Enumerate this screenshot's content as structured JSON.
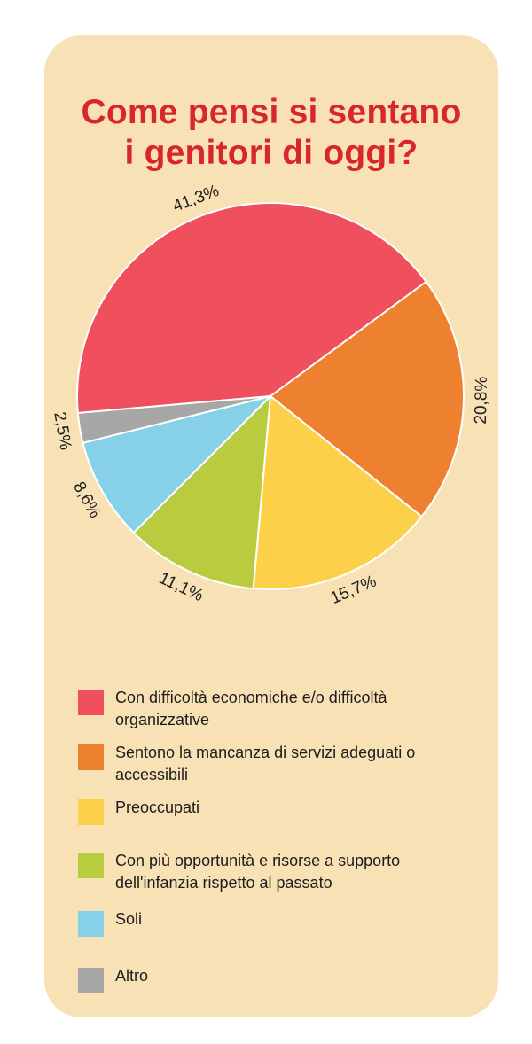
{
  "title": {
    "line1": "Come pensi si sentano",
    "line2": "i genitori di oggi?"
  },
  "colors": {
    "title": "#d8262d",
    "background": "#f9e1b6",
    "slice_1": "#f04f5d",
    "slice_2": "#ee8130",
    "slice_3": "#fdd04a",
    "slice_4": "#b9cc40",
    "slice_5": "#86d1e8",
    "slice_6": "#a7a7a7"
  },
  "chart_data": {
    "type": "pie",
    "title": "Come pensi si sentano i genitori di oggi?",
    "categories": [
      "Con difficoltà economiche e/o difficoltà organizzative",
      "Sentono la mancanza di servizi adeguati o accessibili",
      "Preoccupati",
      "Con più opportunità e risorse a supporto dell'infanzia rispetto al passato",
      "Soli",
      "Altro"
    ],
    "values": [
      41.3,
      20.8,
      15.7,
      11.1,
      8.6,
      2.5
    ],
    "value_labels": [
      "41,3%",
      "20,8%",
      "15,7%",
      "11,1%",
      "8,6%",
      "2,5%"
    ],
    "unit": "%",
    "legend_position": "bottom"
  },
  "legend": {
    "items": [
      {
        "label": "Con difficoltà economiche e/o difficoltà organizzative"
      },
      {
        "label": "Sentono la mancanza di servizi adeguati o accessibili"
      },
      {
        "label": "Preoccupati"
      },
      {
        "label": "Con più opportunità e risorse a supporto dell'infanzia rispetto al passato"
      },
      {
        "label": "Soli"
      },
      {
        "label": "Altro"
      }
    ]
  }
}
